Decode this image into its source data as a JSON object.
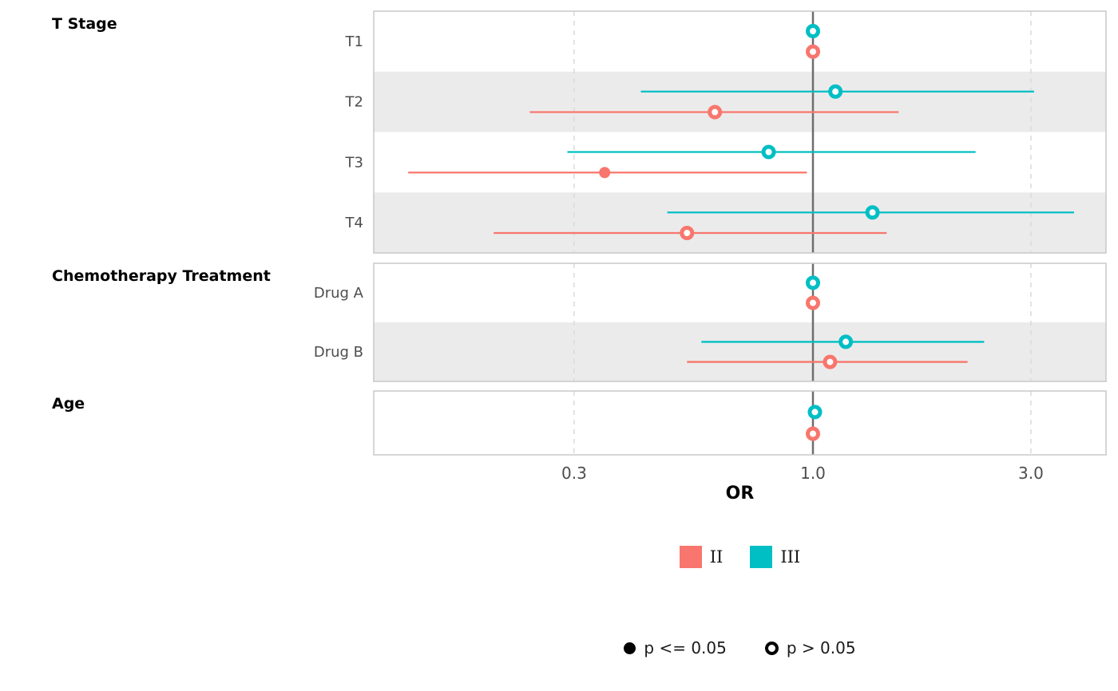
{
  "chart_data": {
    "type": "forest-dot-ci",
    "xlabel": "OR",
    "x_scale": "log",
    "x_ticks": [
      {
        "value": 0.3,
        "label": "0.3"
      },
      {
        "value": 1.0,
        "label": "1.0"
      },
      {
        "value": 3.0,
        "label": "3.0"
      }
    ],
    "x_range": [
      0.11,
      4.4
    ],
    "reference_line": 1.0,
    "grid": "dashed-vertical",
    "legend_position": "bottom",
    "series": [
      {
        "name": "II",
        "color": "#F8766D"
      },
      {
        "name": "III",
        "color": "#00BFC4"
      }
    ],
    "sig_legend": [
      {
        "label": "p <= 0.05",
        "filled": true
      },
      {
        "label": "p > 0.05",
        "filled": false
      }
    ],
    "panels": [
      {
        "title": "T Stage",
        "rows": [
          {
            "label": "T1",
            "shaded": false,
            "estimates": [
              {
                "series": "III",
                "or": 1.0,
                "ci_low": null,
                "ci_high": null,
                "significant": false
              },
              {
                "series": "II",
                "or": 1.0,
                "ci_low": null,
                "ci_high": null,
                "significant": false
              }
            ]
          },
          {
            "label": "T2",
            "shaded": true,
            "estimates": [
              {
                "series": "III",
                "or": 1.12,
                "ci_low": 0.42,
                "ci_high": 3.05,
                "significant": false
              },
              {
                "series": "II",
                "or": 0.61,
                "ci_low": 0.24,
                "ci_high": 1.54,
                "significant": false
              }
            ]
          },
          {
            "label": "T3",
            "shaded": false,
            "estimates": [
              {
                "series": "III",
                "or": 0.8,
                "ci_low": 0.29,
                "ci_high": 2.27,
                "significant": false
              },
              {
                "series": "II",
                "or": 0.35,
                "ci_low": 0.13,
                "ci_high": 0.97,
                "significant": true
              }
            ]
          },
          {
            "label": "T4",
            "shaded": true,
            "estimates": [
              {
                "series": "III",
                "or": 1.35,
                "ci_low": 0.48,
                "ci_high": 3.73,
                "significant": false
              },
              {
                "series": "II",
                "or": 0.53,
                "ci_low": 0.2,
                "ci_high": 1.45,
                "significant": false
              }
            ]
          }
        ]
      },
      {
        "title": "Chemotherapy Treatment",
        "rows": [
          {
            "label": "Drug A",
            "shaded": false,
            "estimates": [
              {
                "series": "III",
                "or": 1.0,
                "ci_low": null,
                "ci_high": null,
                "significant": false
              },
              {
                "series": "II",
                "or": 1.0,
                "ci_low": null,
                "ci_high": null,
                "significant": false
              }
            ]
          },
          {
            "label": "Drug B",
            "shaded": true,
            "estimates": [
              {
                "series": "III",
                "or": 1.18,
                "ci_low": 0.57,
                "ci_high": 2.37,
                "significant": false
              },
              {
                "series": "II",
                "or": 1.09,
                "ci_low": 0.53,
                "ci_high": 2.18,
                "significant": false
              }
            ]
          }
        ]
      },
      {
        "title": "Age",
        "rows": [
          {
            "label": "",
            "shaded": false,
            "estimates": [
              {
                "series": "III",
                "or": 1.01,
                "ci_low": 0.99,
                "ci_high": 1.03,
                "significant": false
              },
              {
                "series": "II",
                "or": 1.0,
                "ci_low": 0.99,
                "ci_high": 1.02,
                "significant": false
              }
            ]
          }
        ]
      }
    ]
  }
}
